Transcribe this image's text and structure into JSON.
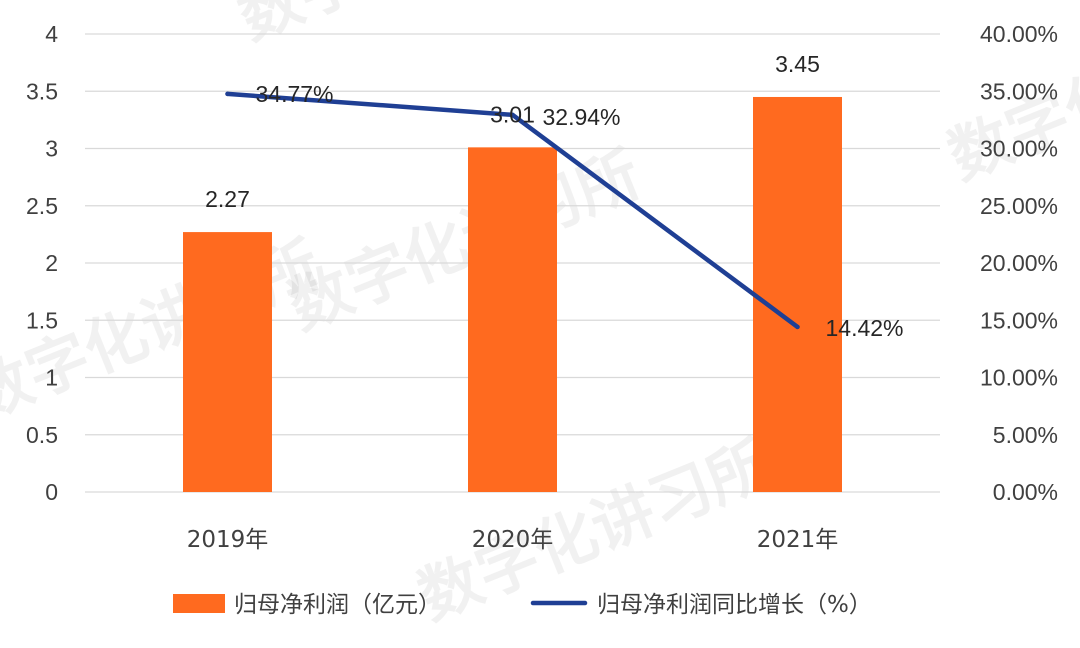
{
  "chart_data": {
    "type": "bar+line",
    "categories": [
      "2019年",
      "2020年",
      "2021年"
    ],
    "series": [
      {
        "name": "归母净利润（亿元）",
        "type": "bar",
        "axis": "left",
        "values": [
          2.27,
          3.01,
          3.45
        ],
        "labels": [
          "2.27",
          "3.01",
          "3.45"
        ],
        "color": "#FF6A1F"
      },
      {
        "name": "归母净利润同比增长（%）",
        "type": "line",
        "axis": "right",
        "values": [
          34.77,
          32.94,
          14.42
        ],
        "labels": [
          "34.77%",
          "32.94%",
          "14.42%"
        ],
        "color": "#1F3F94"
      }
    ],
    "y_left": {
      "ylim": [
        0,
        4
      ],
      "ticks": [
        "0",
        "0.5",
        "1",
        "1.5",
        "2",
        "2.5",
        "3",
        "3.5",
        "4"
      ]
    },
    "y_right": {
      "ylim": [
        0,
        40
      ],
      "ticks": [
        "0.00%",
        "5.00%",
        "10.00%",
        "15.00%",
        "20.00%",
        "25.00%",
        "30.00%",
        "35.00%",
        "40.00%"
      ]
    },
    "grid": true,
    "legend_position": "bottom"
  },
  "watermark": "数字化讲习所"
}
